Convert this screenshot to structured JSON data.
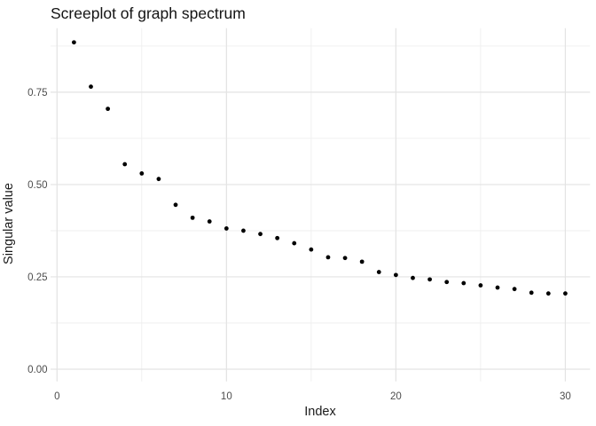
{
  "chart_data": {
    "type": "scatter",
    "title": "Screeplot of graph spectrum",
    "xlabel": "Index",
    "ylabel": "Singular value",
    "x": [
      1,
      2,
      3,
      4,
      5,
      6,
      7,
      8,
      9,
      10,
      11,
      12,
      13,
      14,
      15,
      16,
      17,
      18,
      19,
      20,
      21,
      22,
      23,
      24,
      25,
      26,
      27,
      28,
      29,
      30
    ],
    "y": [
      0.885,
      0.765,
      0.705,
      0.555,
      0.53,
      0.515,
      0.445,
      0.41,
      0.4,
      0.381,
      0.375,
      0.366,
      0.355,
      0.341,
      0.324,
      0.303,
      0.301,
      0.291,
      0.263,
      0.255,
      0.247,
      0.243,
      0.236,
      0.233,
      0.227,
      0.221,
      0.217,
      0.207,
      0.205,
      0.205
    ],
    "xlim": [
      -0.382,
      31.46
    ],
    "ylim": [
      -0.033,
      0.9235
    ],
    "xticks": [
      0,
      10,
      20,
      30
    ],
    "xtick_labels": [
      "0",
      "10",
      "20",
      "30"
    ],
    "yticks": [
      0,
      0.25,
      0.5,
      0.75
    ],
    "ytick_labels": [
      "0.00",
      "0.25",
      "0.50",
      "0.75"
    ],
    "x_minor": [
      5,
      15,
      25
    ],
    "y_minor": [
      0.125,
      0.375,
      0.625,
      0.875
    ],
    "grid": "major+minor",
    "legend": "none",
    "point_color": "#000000",
    "point_radius": 2.4,
    "grid_major_color": "#e3e3e3",
    "grid_minor_color": "#ededed",
    "tick_label_color": "#4d4d4d",
    "title_color": "#141414",
    "axis_title_color": "#1a1a1a",
    "background_color": "#ffffff"
  }
}
